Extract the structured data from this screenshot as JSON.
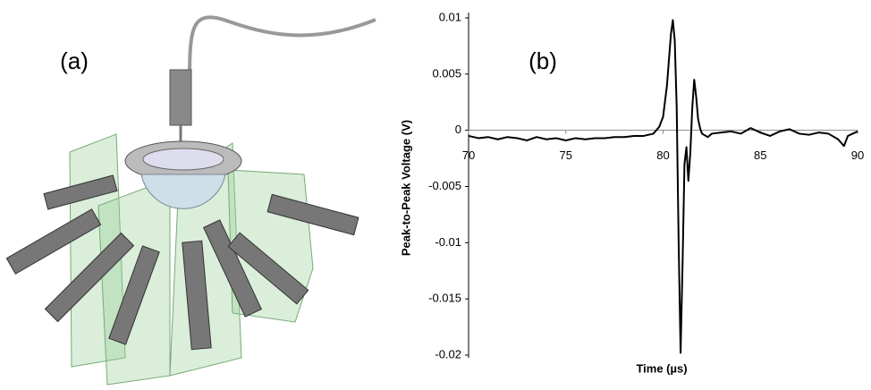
{
  "panels": {
    "a": "(a)",
    "b": "(b)"
  },
  "chart_data": {
    "type": "line",
    "y_label": "Peak-to-Peak Voltage (V)",
    "x_label": "Time (µs)",
    "color": "#000000",
    "xlim": [
      70,
      90
    ],
    "xticks": [
      70,
      75,
      80,
      85,
      90
    ],
    "ylim": [
      -0.02,
      0.01
    ],
    "yticks": [
      0.01,
      0.005,
      0,
      -0.005,
      -0.01,
      -0.015,
      -0.02
    ],
    "x": [
      70,
      70.5,
      71,
      71.5,
      72,
      72.5,
      73,
      73.5,
      74,
      74.5,
      75,
      75.5,
      76,
      76.5,
      77,
      77.5,
      78,
      78.5,
      79,
      79.5,
      79.8,
      80.0,
      80.2,
      80.4,
      80.5,
      80.6,
      80.7,
      80.8,
      80.9,
      81.0,
      81.1,
      81.2,
      81.3,
      81.4,
      81.5,
      81.6,
      81.7,
      81.8,
      81.9,
      82,
      82.3,
      82.5,
      83,
      83.5,
      84,
      84.5,
      85,
      85.5,
      86,
      86.5,
      87,
      87.5,
      88,
      88.5,
      89,
      89.3,
      89.5,
      90
    ],
    "values": [
      -0.0005,
      -0.0007,
      -0.0006,
      -0.0008,
      -0.0006,
      -0.0007,
      -0.0009,
      -0.0006,
      -0.0008,
      -0.0007,
      -0.0009,
      -0.0007,
      -0.0008,
      -0.0007,
      -0.0007,
      -0.0006,
      -0.0006,
      -0.0005,
      -0.0005,
      -0.0003,
      0.0003,
      0.0012,
      0.004,
      0.0085,
      0.0098,
      0.008,
      0.002,
      -0.01,
      -0.0198,
      -0.012,
      -0.003,
      -0.0015,
      -0.0045,
      -0.002,
      0.002,
      0.0045,
      0.003,
      0.001,
      0.0002,
      -0.0003,
      -0.0006,
      -0.0003,
      -0.0002,
      -0.0001,
      -0.0003,
      0.0002,
      -0.0002,
      -0.0005,
      -0.0001,
      0.0001,
      -0.0003,
      -0.0004,
      -0.0002,
      -0.0003,
      -0.0008,
      -0.0014,
      -0.0005,
      -0.0001
    ]
  }
}
